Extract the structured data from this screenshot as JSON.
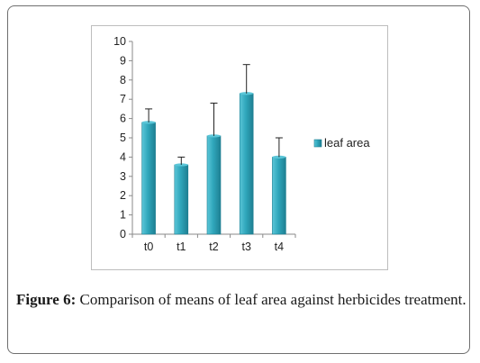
{
  "chart_data": {
    "type": "bar",
    "categories": [
      "t0",
      "t1",
      "t2",
      "t3",
      "t4"
    ],
    "series": [
      {
        "name": "leaf area",
        "values": [
          5.8,
          3.6,
          5.1,
          7.3,
          4.0
        ],
        "error_upper": [
          0.7,
          0.4,
          1.7,
          1.5,
          1.0
        ]
      }
    ],
    "ylim": [
      0,
      10
    ],
    "yticks": [
      0,
      1,
      2,
      3,
      4,
      5,
      6,
      7,
      8,
      9,
      10
    ],
    "grid": false,
    "legend_position": "right",
    "colors": {
      "bar_top": "#5bc6d8",
      "bar_mid": "#2fa6bb",
      "bar_edge": "#1e7f92",
      "error_bar": "#222222"
    }
  },
  "caption": {
    "label": "Figure 6:",
    "text": " Comparison of means of leaf area against herbicides treatment."
  }
}
